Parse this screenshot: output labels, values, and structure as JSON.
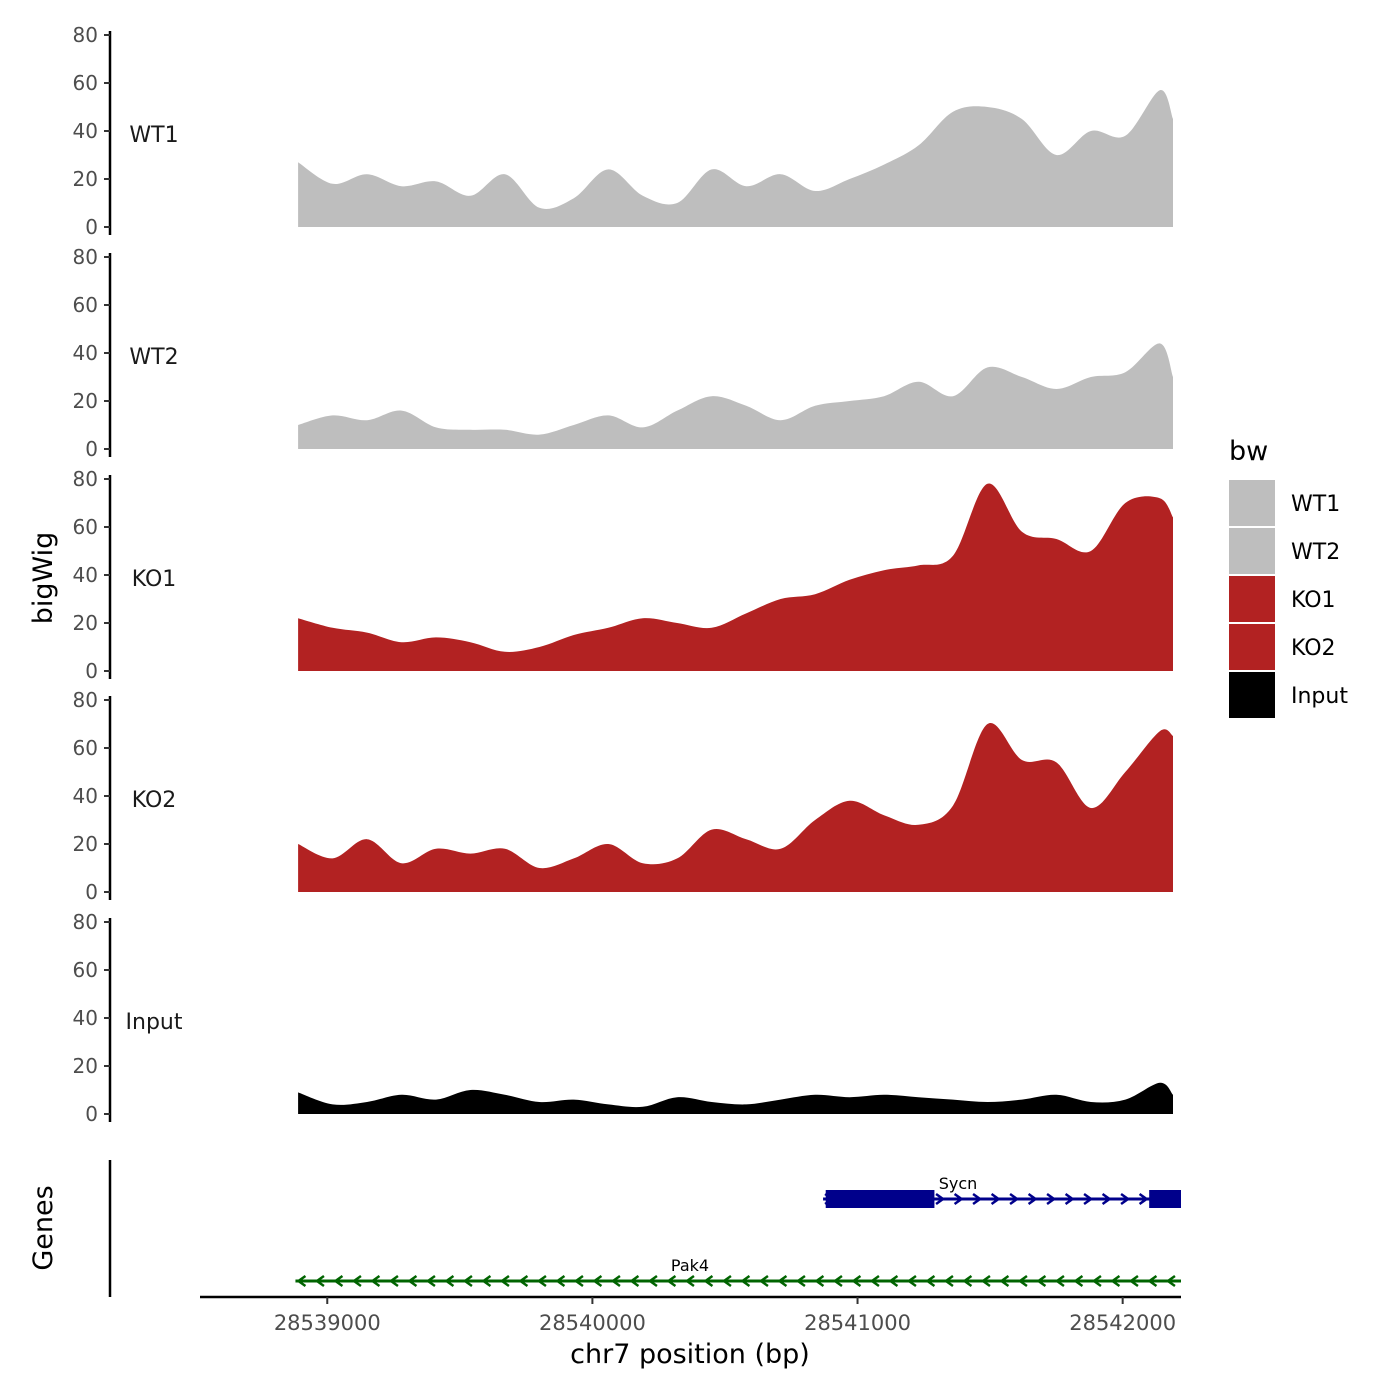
{
  "chart_data": {
    "type": "area",
    "title": "",
    "ylabel": "bigWig",
    "genes_label": "Genes",
    "xlabel": "chr7 position (bp)",
    "x_ticks": [
      28539000,
      28540000,
      28541000,
      28542000
    ],
    "x_range": [
      28538520,
      28542220
    ],
    "ylim": [
      0,
      80
    ],
    "y_ticks": [
      0,
      20,
      40,
      60,
      80
    ],
    "legend": {
      "title": "bw",
      "position": "right",
      "entries": [
        {
          "name": "WT1",
          "color": "#bebebe"
        },
        {
          "name": "WT2",
          "color": "#bebebe"
        },
        {
          "name": "KO1",
          "color": "#b22222"
        },
        {
          "name": "KO2",
          "color": "#b22222"
        },
        {
          "name": "Input",
          "color": "#000000"
        }
      ]
    },
    "x": [
      28538890,
      28539020,
      28539150,
      28539280,
      28539410,
      28539540,
      28539670,
      28539800,
      28539930,
      28540060,
      28540190,
      28540320,
      28540450,
      28540580,
      28540710,
      28540840,
      28540970,
      28541100,
      28541230,
      28541360,
      28541490,
      28541620,
      28541750,
      28541880,
      28542010,
      28542140,
      28542190
    ],
    "series": [
      {
        "name": "WT1",
        "color": "#bebebe",
        "values": [
          27,
          18,
          22,
          17,
          19,
          13,
          22,
          8,
          12,
          24,
          13,
          10,
          24,
          17,
          22,
          15,
          20,
          26,
          34,
          48,
          50,
          45,
          30,
          40,
          38,
          57,
          45
        ]
      },
      {
        "name": "WT2",
        "color": "#bebebe",
        "values": [
          10,
          14,
          12,
          16,
          9,
          8,
          8,
          6,
          10,
          14,
          9,
          16,
          22,
          18,
          12,
          18,
          20,
          22,
          28,
          22,
          34,
          30,
          25,
          30,
          32,
          44,
          30
        ]
      },
      {
        "name": "KO1",
        "color": "#b22222",
        "values": [
          22,
          18,
          16,
          12,
          14,
          12,
          8,
          10,
          15,
          18,
          22,
          20,
          18,
          24,
          30,
          32,
          38,
          42,
          44,
          48,
          78,
          58,
          55,
          50,
          70,
          72,
          64
        ]
      },
      {
        "name": "KO2",
        "color": "#b22222",
        "values": [
          20,
          14,
          22,
          12,
          18,
          16,
          18,
          10,
          14,
          20,
          12,
          14,
          26,
          22,
          18,
          30,
          38,
          32,
          28,
          36,
          70,
          55,
          54,
          35,
          50,
          67,
          65
        ]
      },
      {
        "name": "Input",
        "color": "#000000",
        "values": [
          9,
          4,
          5,
          8,
          6,
          10,
          8,
          5,
          6,
          4,
          3,
          7,
          5,
          4,
          6,
          8,
          7,
          8,
          7,
          6,
          5,
          6,
          8,
          5,
          6,
          13,
          8
        ]
      }
    ],
    "genes": [
      {
        "name": "Sycn",
        "color": "#00008b",
        "strand": "+",
        "start": 28540870,
        "end": 28542220,
        "exons": [
          [
            28540880,
            28541290
          ],
          [
            28542100,
            28542220
          ]
        ]
      },
      {
        "name": "Pak4",
        "color": "#006400",
        "strand": "-",
        "start": 28538880,
        "end": 28542220,
        "exons": []
      }
    ]
  }
}
